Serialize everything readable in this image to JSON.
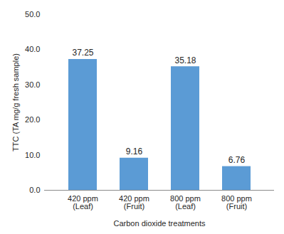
{
  "chart_data": {
    "type": "bar",
    "categories": [
      "420 ppm (Leaf)",
      "420 ppm (Fruit)",
      "800 ppm (Leaf)",
      "800 ppm (Fruit)"
    ],
    "values": [
      37.25,
      9.16,
      35.18,
      6.76
    ],
    "color": "#5b9bd5",
    "xlabel": "Carbon dioxide treatments",
    "ylabel": "TTC (TA mg/g fresh sample)",
    "ylim": [
      0,
      50
    ],
    "yticks": [
      {
        "value": 0,
        "label": "0.0"
      },
      {
        "value": 10,
        "label": "10.0"
      },
      {
        "value": 20,
        "label": "20.0"
      },
      {
        "value": 30,
        "label": "30.0"
      },
      {
        "value": 40,
        "label": "40.0"
      },
      {
        "value": 50,
        "label": "50.0"
      }
    ],
    "data_labels": true,
    "grid": false
  }
}
